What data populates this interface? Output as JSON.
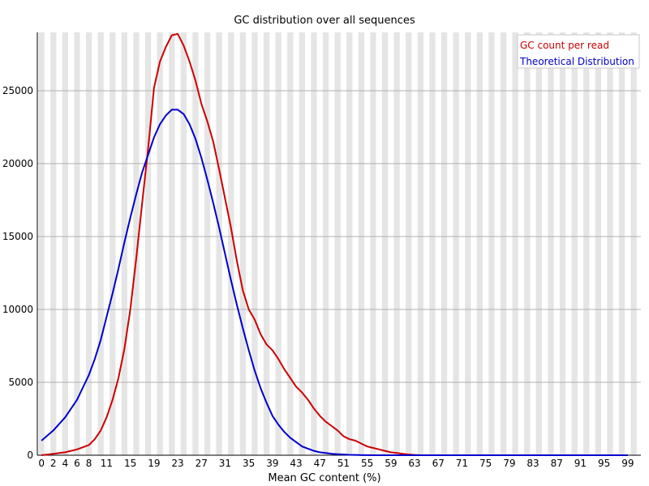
{
  "chart_data": {
    "type": "line",
    "title": "GC distribution over all sequences",
    "xlabel": "Mean GC content (%)",
    "ylabel": "",
    "xlim": [
      0,
      100
    ],
    "ylim": [
      0,
      29000
    ],
    "yticks": [
      0,
      5000,
      10000,
      15000,
      20000,
      25000
    ],
    "xtick_labels": [
      "0",
      "2",
      "4",
      "6",
      "8",
      "11",
      "15",
      "19",
      "23",
      "27",
      "31",
      "35",
      "39",
      "43",
      "47",
      "51",
      "55",
      "59",
      "63",
      "67",
      "71",
      "75",
      "79",
      "83",
      "87",
      "91",
      "95",
      "99"
    ],
    "grid": "horizontal gridlines; alternating light gray vertical bands",
    "legend_position": "top-right",
    "series": [
      {
        "name": "GC count per read",
        "color": "#cc0000",
        "x": [
          0,
          2,
          4,
          6,
          8,
          9,
          10,
          11,
          12,
          13,
          14,
          15,
          16,
          17,
          18,
          19,
          20,
          21,
          22,
          23,
          24,
          25,
          26,
          27,
          28,
          29,
          30,
          31,
          32,
          33,
          34,
          35,
          36,
          37,
          38,
          39,
          40,
          41,
          42,
          43,
          44,
          45,
          46,
          47,
          48,
          49,
          50,
          51,
          52,
          53,
          54,
          55,
          56,
          57,
          58,
          59,
          60,
          61,
          62,
          63,
          64,
          65,
          66,
          67,
          70,
          75,
          80,
          85,
          90,
          95,
          99
        ],
        "values": [
          0,
          100,
          200,
          400,
          700,
          1100,
          1700,
          2600,
          3800,
          5300,
          7300,
          10000,
          13500,
          17300,
          21000,
          25200,
          27000,
          28000,
          28800,
          28900,
          28100,
          27000,
          25700,
          24100,
          22900,
          21500,
          19600,
          17600,
          15600,
          13300,
          11300,
          10000,
          9300,
          8300,
          7600,
          7200,
          6600,
          5900,
          5300,
          4700,
          4300,
          3800,
          3200,
          2700,
          2300,
          2000,
          1700,
          1300,
          1100,
          1000,
          800,
          600,
          500,
          400,
          300,
          200,
          150,
          100,
          50,
          20,
          0,
          0,
          0,
          0,
          0,
          0,
          0,
          0,
          0,
          0,
          0
        ]
      },
      {
        "name": "Theoretical Distribution",
        "color": "#0000cc",
        "x": [
          0,
          2,
          4,
          6,
          8,
          9,
          10,
          11,
          12,
          13,
          14,
          15,
          16,
          17,
          18,
          19,
          20,
          21,
          22,
          23,
          24,
          25,
          26,
          27,
          28,
          29,
          30,
          31,
          32,
          33,
          34,
          35,
          36,
          37,
          38,
          39,
          40,
          41,
          42,
          43,
          44,
          45,
          46,
          47,
          48,
          49,
          50,
          51,
          52,
          53,
          54,
          55,
          56,
          57,
          58,
          59,
          60,
          61,
          62,
          63,
          64,
          65,
          66,
          67,
          70,
          75,
          80,
          85,
          90,
          95,
          99
        ],
        "values": [
          1000,
          1700,
          2600,
          3800,
          5500,
          6600,
          7900,
          9500,
          11100,
          12800,
          14600,
          16300,
          17900,
          19400,
          20600,
          21800,
          22700,
          23300,
          23700,
          23700,
          23400,
          22700,
          21700,
          20400,
          18900,
          17300,
          15600,
          13800,
          12000,
          10300,
          8700,
          7200,
          5800,
          4600,
          3600,
          2700,
          2100,
          1600,
          1200,
          900,
          600,
          450,
          300,
          200,
          150,
          100,
          70,
          50,
          30,
          20,
          10,
          5,
          2,
          0,
          0,
          0,
          0,
          0,
          0,
          0,
          0,
          0,
          0,
          0,
          0,
          0,
          0,
          0,
          0,
          0,
          0
        ]
      }
    ]
  }
}
